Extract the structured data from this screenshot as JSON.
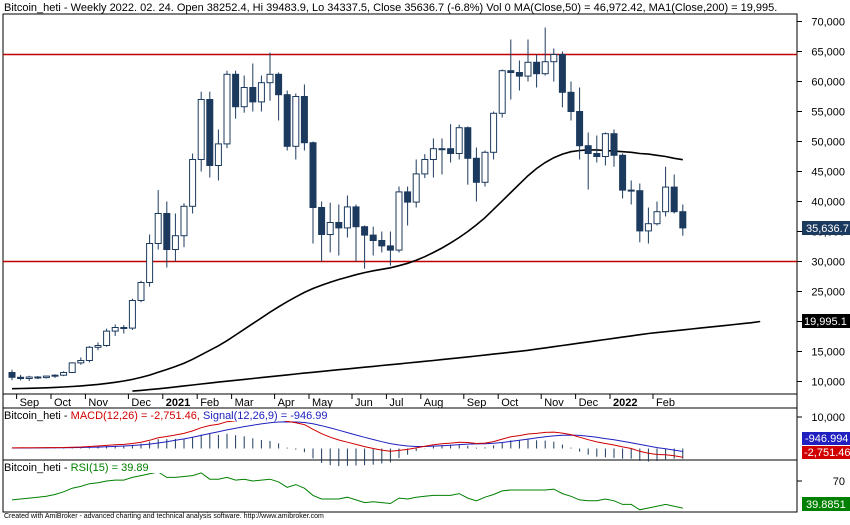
{
  "header": {
    "title": "Bitcoin_heti - Weekly 2022. 02. 24. Open 38252.4, Hi 39483.9, Lo 34337.5, Close 35636.7 (-6.8%) Vol 0 MA(Close,50) = 46,972.42, MA1(Close,200) = 19,995."
  },
  "macd_title": {
    "prefix": "Bitcoin_heti - ",
    "macd": "MACD(12,26) = -2,751.46,",
    "signal": "Signal(12,26,9) = -946.99"
  },
  "rsi_title": {
    "prefix": "Bitcoin_heti - ",
    "rsi": "RSI(15) = 39.89"
  },
  "footer": "Created with AmiBroker - advanced charting and technical analysis software. http://www.amibroker.com",
  "price_badges": {
    "close": "35,636.7",
    "ma200": "19,995.1"
  },
  "macd_badges": {
    "signal": "-946.994",
    "macd": "-2,751.46"
  },
  "rsi_badge": "39.8851",
  "colors": {
    "candle": "#1c3a5e",
    "hline": "#c00000",
    "ma": "#000000",
    "macd": "#d00000",
    "signal": "#2020c0",
    "rsi": "#008000"
  },
  "chart_data": [
    {
      "type": "candlestick",
      "y_ticks": [
        10000,
        15000,
        20000,
        25000,
        30000,
        35000,
        40000,
        45000,
        50000,
        55000,
        60000,
        65000,
        70000
      ],
      "y_tick_labels": [
        "10,000",
        "15,000",
        "20,000",
        "25,000",
        "30,000",
        "35,000",
        "40,000",
        "45,000",
        "50,000",
        "55,000",
        "60,000",
        "65,000",
        "70,000"
      ],
      "x_labels": [
        {
          "i": 1,
          "label": "Sep",
          "bold": false
        },
        {
          "i": 5,
          "label": "Oct",
          "bold": false
        },
        {
          "i": 9,
          "label": "Nov",
          "bold": false
        },
        {
          "i": 14,
          "label": "Dec",
          "bold": false
        },
        {
          "i": 18,
          "label": "2021",
          "bold": true
        },
        {
          "i": 22,
          "label": "Feb",
          "bold": false
        },
        {
          "i": 26,
          "label": "Mar",
          "bold": false
        },
        {
          "i": 31,
          "label": "Apr",
          "bold": false
        },
        {
          "i": 35,
          "label": "May",
          "bold": false
        },
        {
          "i": 40,
          "label": "Jun",
          "bold": false
        },
        {
          "i": 44,
          "label": "Jul",
          "bold": false
        },
        {
          "i": 48,
          "label": "Aug",
          "bold": false
        },
        {
          "i": 53,
          "label": "Sep",
          "bold": false
        },
        {
          "i": 57,
          "label": "Oct",
          "bold": false
        },
        {
          "i": 62,
          "label": "Nov",
          "bold": false
        },
        {
          "i": 66,
          "label": "Dec",
          "bold": false
        },
        {
          "i": 70,
          "label": "2022",
          "bold": true
        },
        {
          "i": 75,
          "label": "Feb",
          "bold": false
        }
      ],
      "horizontal_lines": [
        64500,
        30000
      ],
      "candles": [
        [
          11500,
          11950,
          10200,
          10700
        ],
        [
          10700,
          11100,
          10200,
          10500
        ],
        [
          10500,
          10950,
          10100,
          10750
        ],
        [
          10750,
          10900,
          10400,
          10650
        ],
        [
          10650,
          11000,
          10500,
          10900
        ],
        [
          10900,
          11200,
          10600,
          11050
        ],
        [
          11050,
          11700,
          10900,
          11500
        ],
        [
          11500,
          13200,
          11400,
          13100
        ],
        [
          13100,
          14000,
          12800,
          13500
        ],
        [
          13500,
          15900,
          13200,
          15700
        ],
        [
          15700,
          16500,
          15200,
          16000
        ],
        [
          16000,
          18800,
          15800,
          18400
        ],
        [
          18400,
          19500,
          17600,
          19000
        ],
        [
          19000,
          19400,
          18000,
          18900
        ],
        [
          18900,
          23800,
          18600,
          23500
        ],
        [
          23500,
          26800,
          23200,
          26500
        ],
        [
          26500,
          34500,
          25800,
          33000
        ],
        [
          33000,
          41900,
          32000,
          38000
        ],
        [
          38000,
          40000,
          29000,
          32000
        ],
        [
          32000,
          38000,
          30000,
          34300
        ],
        [
          34300,
          39700,
          32400,
          39200
        ],
        [
          39200,
          48000,
          38000,
          47000
        ],
        [
          47000,
          58300,
          45000,
          57000
        ],
        [
          57000,
          58300,
          44000,
          46000
        ],
        [
          46000,
          52000,
          43500,
          49600
        ],
        [
          49600,
          61800,
          48900,
          61200
        ],
        [
          61200,
          61800,
          53800,
          55800
        ],
        [
          55800,
          61000,
          54800,
          59000
        ],
        [
          59000,
          63000,
          55000,
          56600
        ],
        [
          56600,
          61000,
          55000,
          59800
        ],
        [
          59800,
          64800,
          56800,
          61200
        ],
        [
          61200,
          61500,
          53500,
          57800
        ],
        [
          57800,
          58500,
          48500,
          49200
        ],
        [
          49200,
          58000,
          47000,
          57500
        ],
        [
          57500,
          59500,
          48500,
          49800
        ],
        [
          49800,
          50000,
          33000,
          39000
        ],
        [
          39000,
          40000,
          30000,
          34500
        ],
        [
          34500,
          39800,
          31500,
          36500
        ],
        [
          36500,
          39500,
          31000,
          35600
        ],
        [
          35600,
          41000,
          34000,
          39100
        ],
        [
          39100,
          39500,
          30000,
          35800
        ],
        [
          35800,
          36000,
          28800,
          34400
        ],
        [
          34400,
          35800,
          31000,
          33500
        ],
        [
          33500,
          35000,
          31500,
          32600
        ],
        [
          32600,
          35000,
          29300,
          31900
        ],
        [
          31900,
          42500,
          31500,
          41600
        ],
        [
          41600,
          42500,
          36000,
          39900
        ],
        [
          39900,
          47000,
          39000,
          44600
        ],
        [
          44600,
          47900,
          43900,
          47000
        ],
        [
          47000,
          50500,
          44000,
          48800
        ],
        [
          48800,
          50500,
          44500,
          48800
        ],
        [
          48800,
          52900,
          46500,
          48000
        ],
        [
          48000,
          52800,
          47000,
          52300
        ],
        [
          52300,
          52500,
          42800,
          47200
        ],
        [
          47200,
          49000,
          40000,
          43200
        ],
        [
          43200,
          48500,
          42500,
          48200
        ],
        [
          48200,
          55000,
          47000,
          54700
        ],
        [
          54700,
          62000,
          54000,
          61800
        ],
        [
          61800,
          67000,
          57000,
          61500
        ],
        [
          61500,
          63500,
          58500,
          60900
        ],
        [
          60900,
          67000,
          60000,
          63200
        ],
        [
          63200,
          64500,
          59000,
          61300
        ],
        [
          61300,
          69000,
          61000,
          63300
        ],
        [
          63300,
          65500,
          60000,
          64500
        ],
        [
          64500,
          65000,
          55700,
          58200
        ],
        [
          58200,
          60000,
          53500,
          55000
        ],
        [
          55000,
          59000,
          47000,
          49300
        ],
        [
          49300,
          51500,
          42000,
          48000
        ],
        [
          48000,
          51000,
          46500,
          47500
        ],
        [
          47500,
          51500,
          46000,
          51300
        ],
        [
          51300,
          52000,
          45800,
          47700
        ],
        [
          47700,
          48000,
          40500,
          41900
        ],
        [
          41900,
          43500,
          39500,
          41800
        ],
        [
          41800,
          43000,
          33200,
          35100
        ],
        [
          35100,
          39000,
          33000,
          36300
        ],
        [
          36300,
          40000,
          36000,
          38300
        ],
        [
          38300,
          45800,
          37500,
          42400
        ],
        [
          42400,
          44500,
          38000,
          38300
        ],
        [
          38300,
          39500,
          34300,
          35600
        ]
      ],
      "ma50_start_index": 0,
      "ma50": [
        8800,
        8830,
        8860,
        8900,
        8950,
        9010,
        9080,
        9160,
        9260,
        9380,
        9520,
        9680,
        9870,
        10080,
        10350,
        10680,
        11070,
        11540,
        12000,
        12500,
        13050,
        13700,
        14450,
        15200,
        15950,
        16800,
        17750,
        18700,
        19650,
        20600,
        21550,
        22450,
        23300,
        24100,
        24850,
        25500,
        26050,
        26550,
        27000,
        27400,
        27800,
        28150,
        28450,
        28700,
        28950,
        29300,
        29700,
        30200,
        30800,
        31500,
        32250,
        33100,
        34000,
        35000,
        36100,
        37300,
        38700,
        40100,
        41500,
        42900,
        44300,
        45500,
        46500,
        47300,
        47900,
        48300,
        48500,
        48600,
        48600,
        48500,
        48400,
        48300,
        48200,
        48000,
        47900,
        47700,
        47500,
        47200,
        46972
      ],
      "ma200_start_index": 14,
      "ma200": [
        8400,
        8520,
        8650,
        8790,
        8940,
        9100,
        9260,
        9420,
        9580,
        9740,
        9900,
        10050,
        10200,
        10350,
        10500,
        10650,
        10800,
        10950,
        11100,
        11250,
        11400,
        11540,
        11680,
        11820,
        11960,
        12100,
        12240,
        12380,
        12520,
        12660,
        12800,
        12940,
        13080,
        13220,
        13360,
        13500,
        13650,
        13800,
        13950,
        14100,
        14250,
        14400,
        14560,
        14720,
        14880,
        15040,
        15200,
        15400,
        15600,
        15800,
        16000,
        16200,
        16400,
        16600,
        16800,
        17000,
        17200,
        17400,
        17600,
        17800,
        18000,
        18150,
        18300,
        18450,
        18600,
        18750,
        18900,
        19050,
        19200,
        19350,
        19500,
        19650,
        19800,
        19995
      ]
    },
    {
      "type": "line",
      "name": "MACD",
      "y_ticks": [
        10000
      ],
      "y_tick_labels": [
        "10,000"
      ],
      "ylim": [
        -4000,
        11500
      ],
      "macd": [
        200,
        220,
        240,
        250,
        270,
        290,
        320,
        400,
        480,
        620,
        780,
        980,
        1160,
        1300,
        1600,
        2000,
        2600,
        3400,
        3800,
        4300,
        4800,
        5600,
        6600,
        7300,
        7700,
        8500,
        8800,
        9100,
        9200,
        9300,
        9500,
        9300,
        8600,
        8200,
        7600,
        6100,
        4700,
        3600,
        2700,
        2000,
        1300,
        600,
        0,
        -500,
        -900,
        -600,
        -300,
        200,
        700,
        1200,
        1500,
        1700,
        2000,
        1900,
        1600,
        1700,
        2200,
        3000,
        3700,
        4100,
        4600,
        4800,
        5100,
        5200,
        4900,
        4400,
        3600,
        2800,
        2100,
        1600,
        1100,
        500,
        0,
        -900,
        -1500,
        -1900,
        -2000,
        -2300,
        -2751
      ],
      "signal": [
        150,
        160,
        170,
        185,
        200,
        215,
        235,
        270,
        310,
        370,
        450,
        550,
        680,
        800,
        950,
        1150,
        1400,
        1750,
        2150,
        2600,
        3050,
        3550,
        4150,
        4750,
        5300,
        5900,
        6450,
        6950,
        7400,
        7800,
        8150,
        8400,
        8450,
        8400,
        8250,
        7850,
        7250,
        6550,
        5800,
        5050,
        4300,
        3550,
        2850,
        2150,
        1550,
        1100,
        800,
        650,
        650,
        750,
        900,
        1050,
        1250,
        1400,
        1450,
        1500,
        1650,
        1900,
        2250,
        2600,
        3000,
        3350,
        3700,
        4000,
        4200,
        4250,
        4150,
        3900,
        3550,
        3150,
        2750,
        2300,
        1800,
        1300,
        800,
        300,
        -100,
        -500,
        -947
      ]
    },
    {
      "type": "line",
      "name": "RSI",
      "y_ticks": [
        70
      ],
      "y_tick_labels": [
        "70"
      ],
      "ylim": [
        35,
        85
      ],
      "rsi": [
        49,
        50,
        51,
        52,
        53,
        55,
        58,
        62,
        64,
        67,
        68,
        70,
        71,
        71,
        74,
        76,
        78,
        80,
        74,
        74,
        75,
        76,
        79,
        72,
        72,
        74,
        71,
        72,
        70,
        71,
        72,
        69,
        63,
        66,
        62,
        54,
        50,
        50,
        50,
        52,
        49,
        46,
        47,
        46,
        45,
        51,
        50,
        52,
        53,
        54,
        54,
        54,
        56,
        51,
        48,
        52,
        55,
        59,
        60,
        60,
        60,
        60,
        60,
        61,
        56,
        53,
        49,
        48,
        48,
        50,
        48,
        44,
        44,
        38,
        40,
        42,
        44,
        42,
        39.89
      ]
    }
  ]
}
